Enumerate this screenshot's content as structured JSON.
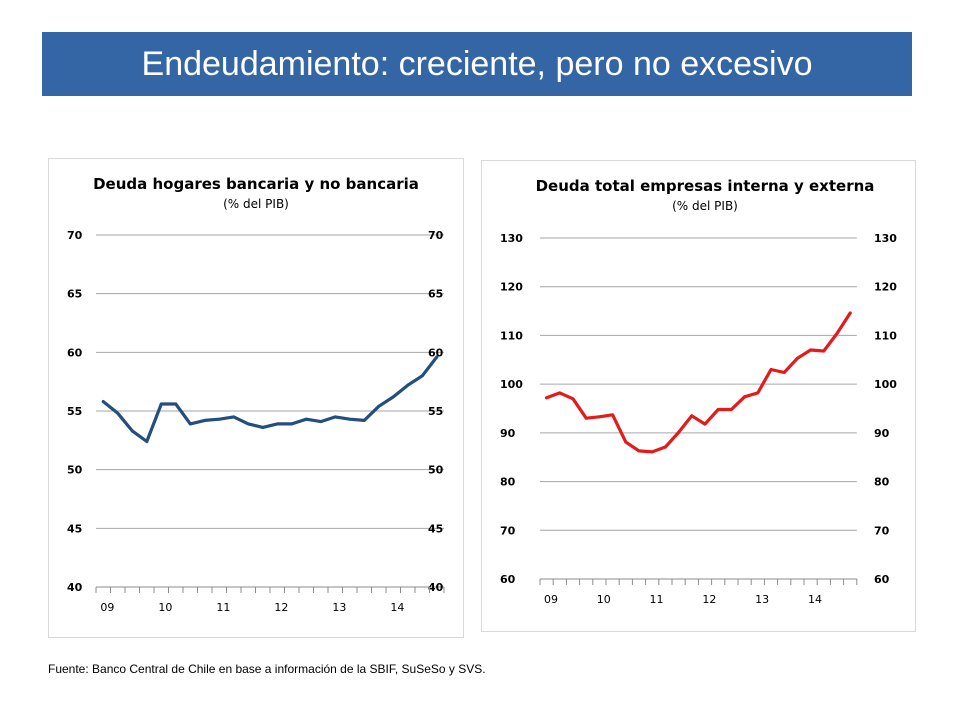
{
  "slide": {
    "title": "Endeudamiento: creciente, pero no excesivo",
    "source": "Fuente: Banco Central de Chile en base a información de la SBIF, SuSeSo y SVS.",
    "accent_color": "#3466a5"
  },
  "chart_data": [
    {
      "type": "line",
      "title": "Deuda hogares bancaria y no bancaria",
      "subtitle": "(% del PIB)",
      "xlabel": "",
      "ylabel": "",
      "ylim": [
        40,
        70
      ],
      "yticks": [
        40,
        45,
        50,
        55,
        60,
        65,
        70
      ],
      "y_axis_both_sides": true,
      "grid": true,
      "x_tick_labels": [
        "09",
        "10",
        "11",
        "12",
        "13",
        "14"
      ],
      "x_tick_label_index": [
        0,
        4,
        8,
        12,
        16,
        20
      ],
      "line_color": "#244e7f",
      "series": [
        {
          "values": [
            55.8,
            54.8,
            53.3,
            52.4,
            55.6,
            55.6,
            53.9,
            54.2,
            54.3,
            54.5,
            53.9,
            53.6,
            53.9,
            53.9,
            54.3,
            54.1,
            54.5,
            54.3,
            54.2,
            55.4,
            56.2,
            57.2,
            58.0,
            59.6
          ]
        }
      ]
    },
    {
      "type": "line",
      "title": "Deuda total empresas interna y externa",
      "subtitle": "(% del PIB)",
      "xlabel": "",
      "ylabel": "",
      "ylim": [
        60,
        130
      ],
      "yticks": [
        60,
        70,
        80,
        90,
        100,
        110,
        120,
        130
      ],
      "y_axis_both_sides": true,
      "grid": true,
      "x_tick_labels": [
        "09",
        "10",
        "11",
        "12",
        "13",
        "14"
      ],
      "x_tick_label_index": [
        0,
        4,
        8,
        12,
        16,
        20
      ],
      "line_color": "#e31b1b",
      "series": [
        {
          "values": [
            97.2,
            98.2,
            97.0,
            93.0,
            93.3,
            93.7,
            88.1,
            86.3,
            86.1,
            87.1,
            90.1,
            93.5,
            91.8,
            94.8,
            94.8,
            97.4,
            98.2,
            103.0,
            102.4,
            105.3,
            107.0,
            106.8,
            110.4,
            114.6
          ]
        }
      ]
    }
  ]
}
